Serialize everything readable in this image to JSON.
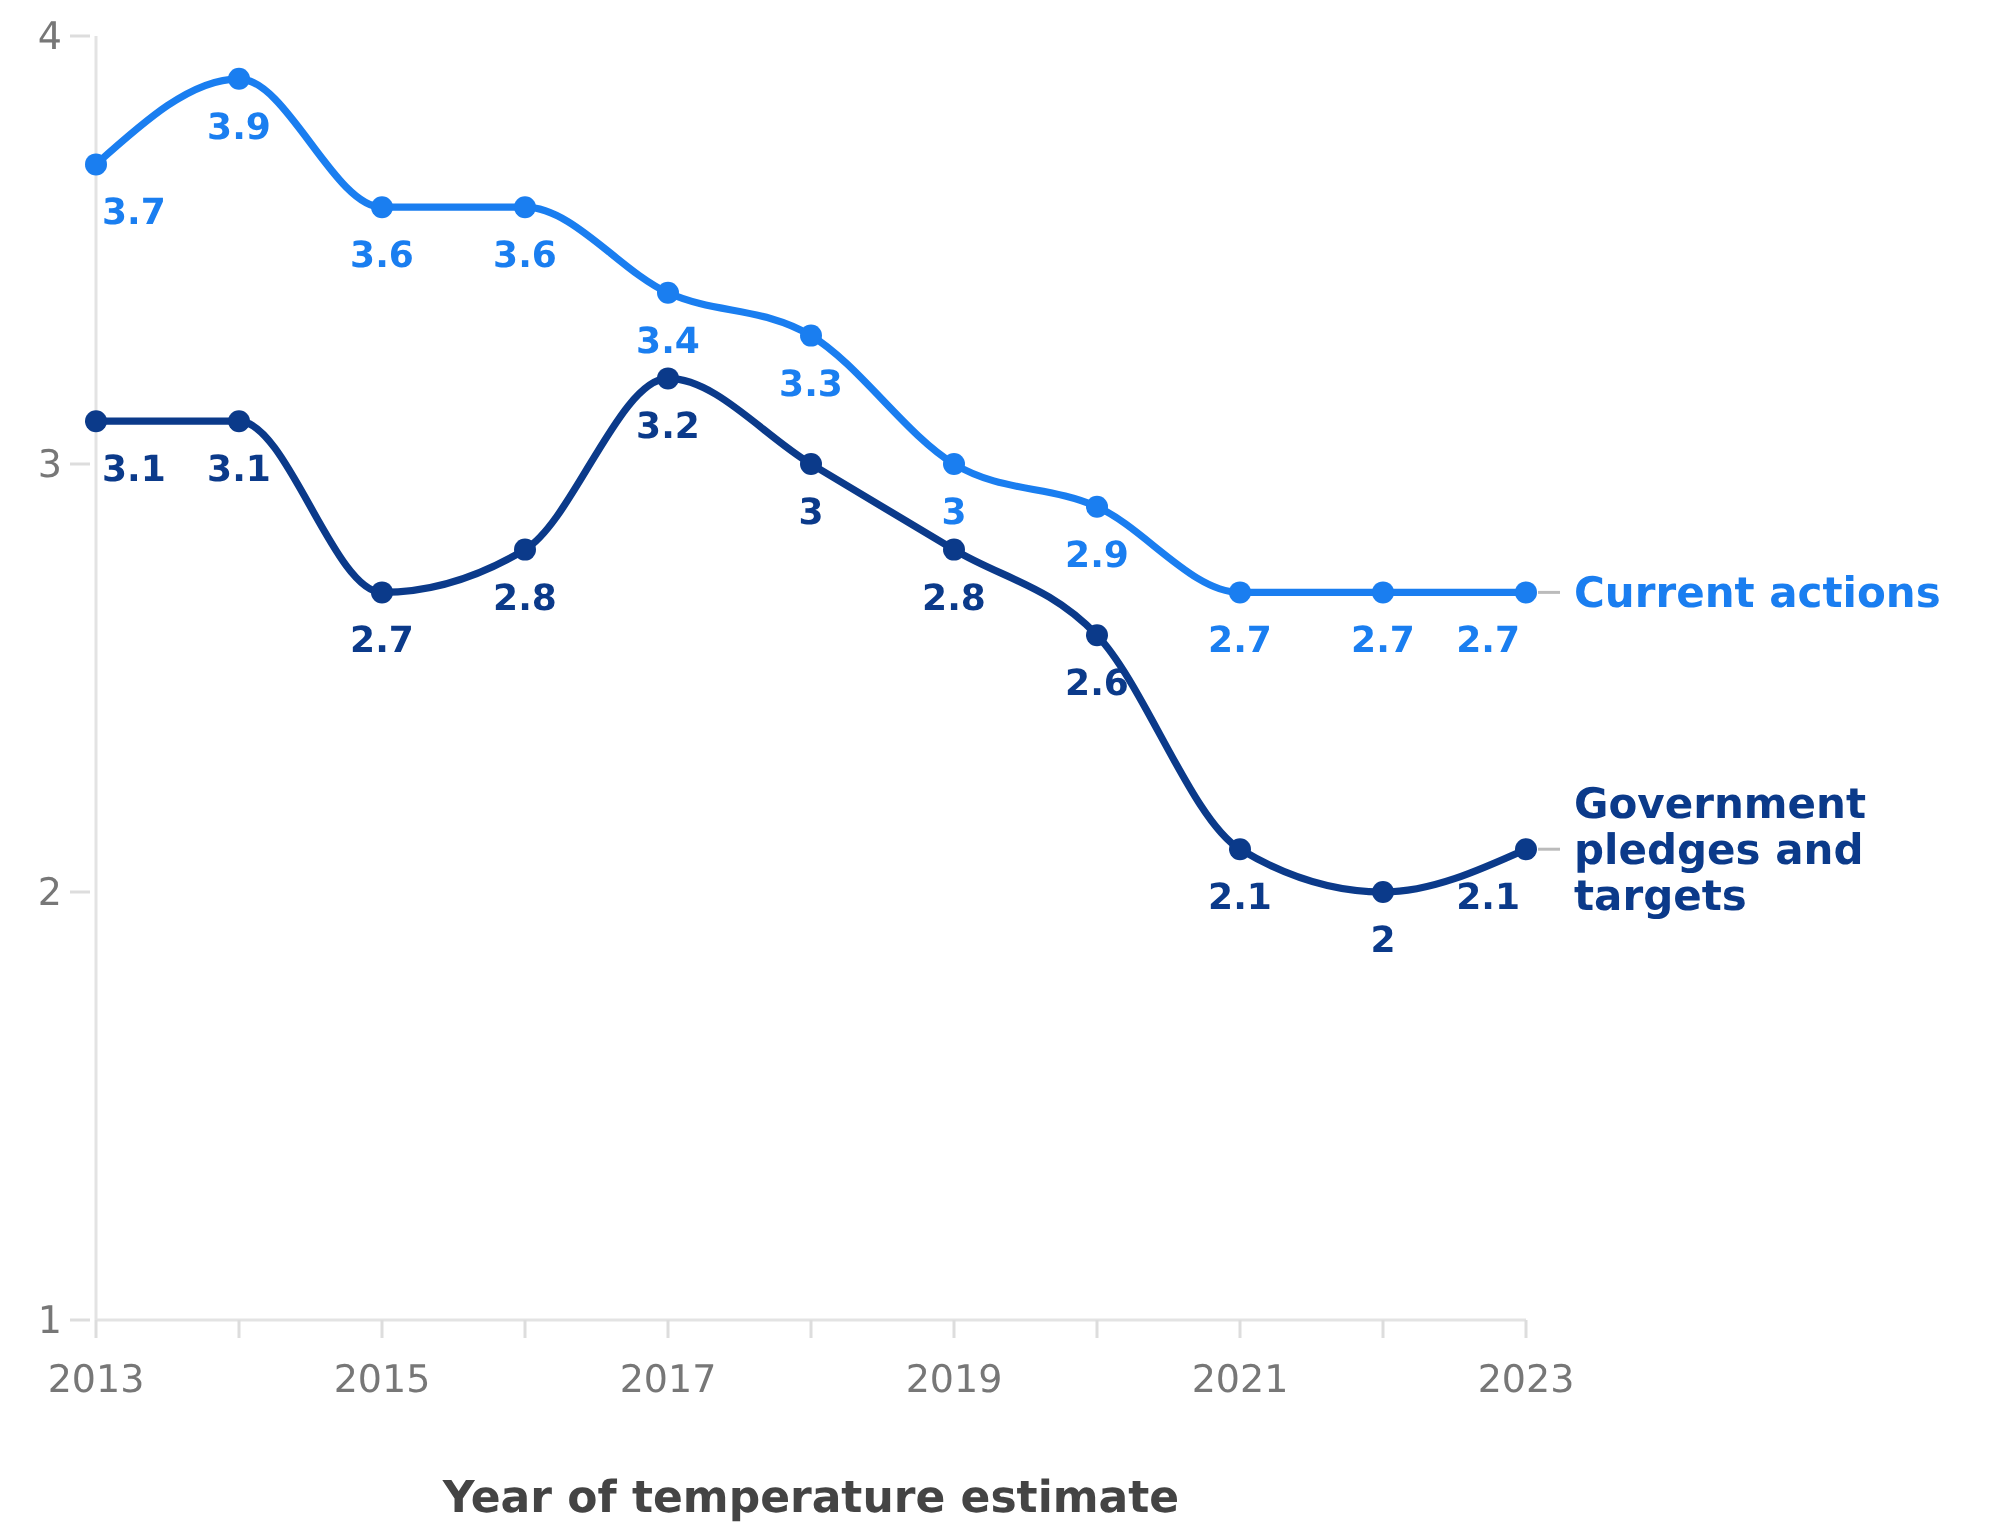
{
  "chart_data": {
    "type": "line",
    "xlabel": "Year of temperature estimate",
    "x": [
      2013,
      2014,
      2015,
      2016,
      2017,
      2018,
      2019,
      2020,
      2021,
      2022,
      2023
    ],
    "xlim": [
      2013,
      2023
    ],
    "xticks": [
      2013,
      {
        "value": 2014,
        "label": null
      },
      2015,
      {
        "value": 2016,
        "label": null
      },
      2017,
      {
        "value": 2018,
        "label": null
      },
      2019,
      {
        "value": 2020,
        "label": null
      },
      2021,
      {
        "value": 2022,
        "label": null
      },
      2023
    ],
    "ylim": [
      1,
      4
    ],
    "yticks": [
      1,
      2,
      3,
      4
    ],
    "series": [
      {
        "name": "Current actions",
        "color": "#1a7ef0",
        "values": [
          3.7,
          3.9,
          3.6,
          3.6,
          3.4,
          3.3,
          3.0,
          2.9,
          2.7,
          2.7,
          2.7
        ]
      },
      {
        "name": "Government pledges and targets",
        "color": "#0b3a8a",
        "values": [
          3.1,
          3.1,
          2.7,
          2.8,
          3.2,
          3.0,
          2.8,
          2.6,
          2.1,
          2.0,
          2.1
        ]
      }
    ],
    "data_labels": true,
    "marker": "circle",
    "line_style": "solid"
  }
}
